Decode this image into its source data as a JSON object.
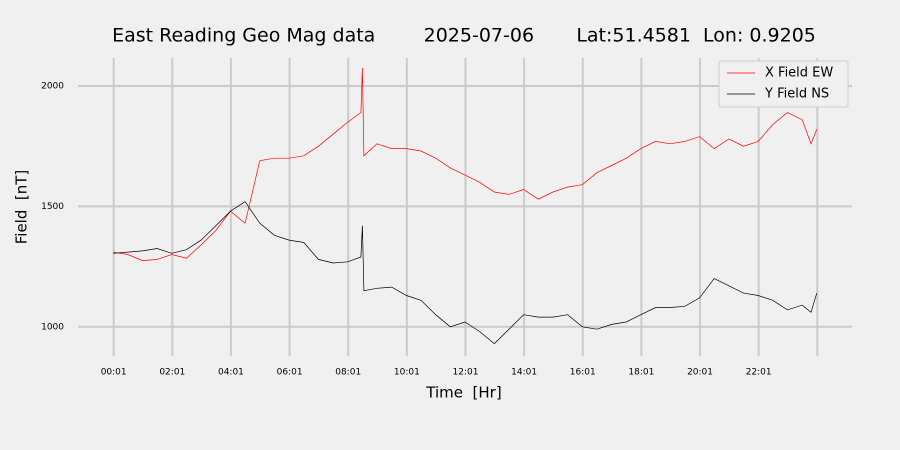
{
  "chart_data": {
    "type": "line",
    "title": "East Reading Geo Mag data        2025-07-06       Lat:51.4581  Lon: 0.9205",
    "x_label": "Time  [Hr]",
    "y_label": "Field  [nT]",
    "x": [
      0,
      0.5,
      1,
      1.5,
      2,
      2.5,
      3,
      3.5,
      4,
      4.5,
      5,
      5.5,
      6,
      6.5,
      7,
      7.5,
      8,
      8.45,
      8.5,
      8.55,
      9,
      9.5,
      10,
      10.5,
      11,
      11.5,
      12,
      12.5,
      13,
      13.5,
      14,
      14.5,
      15,
      15.5,
      16,
      16.5,
      17,
      17.5,
      18,
      18.5,
      19,
      19.5,
      20,
      20.5,
      21,
      21.5,
      22,
      22.5,
      23,
      23.5,
      23.8,
      24
    ],
    "series": [
      {
        "name": "X Field EW",
        "color": "#ff0000",
        "values": [
          1310,
          1300,
          1275,
          1280,
          1300,
          1285,
          1340,
          1400,
          1480,
          1430,
          1690,
          1700,
          1700,
          1710,
          1750,
          1800,
          1850,
          1890,
          2075,
          1710,
          1760,
          1740,
          1740,
          1730,
          1700,
          1660,
          1630,
          1600,
          1560,
          1550,
          1570,
          1530,
          1560,
          1580,
          1590,
          1640,
          1670,
          1700,
          1740,
          1770,
          1760,
          1770,
          1790,
          1740,
          1780,
          1750,
          1770,
          1840,
          1890,
          1860,
          1760,
          1820
        ]
      },
      {
        "name": "Y Field NS",
        "color": "#000000",
        "values": [
          1305,
          1310,
          1315,
          1325,
          1305,
          1320,
          1360,
          1420,
          1480,
          1520,
          1430,
          1380,
          1360,
          1350,
          1280,
          1265,
          1270,
          1290,
          1420,
          1150,
          1160,
          1165,
          1130,
          1110,
          1050,
          1000,
          1020,
          980,
          930,
          990,
          1050,
          1040,
          1040,
          1050,
          1000,
          990,
          1010,
          1020,
          1050,
          1080,
          1080,
          1085,
          1120,
          1200,
          1170,
          1140,
          1130,
          1110,
          1070,
          1090,
          1060,
          1140
        ]
      }
    ],
    "xlim": [
      -1.2,
      25.2
    ],
    "ylim": [
      862,
      2133
    ],
    "xticks": [
      {
        "value": 0.0167,
        "label": "00:01"
      },
      {
        "value": 2.0167,
        "label": "02:01"
      },
      {
        "value": 4.0167,
        "label": "04:01"
      },
      {
        "value": 6.0167,
        "label": "06:01"
      },
      {
        "value": 8.0167,
        "label": "08:01"
      },
      {
        "value": 10.0167,
        "label": "10:01"
      },
      {
        "value": 12.0167,
        "label": "12:01"
      },
      {
        "value": 14.0167,
        "label": "14:01"
      },
      {
        "value": 16.0167,
        "label": "16:01"
      },
      {
        "value": 18.0167,
        "label": "18:01"
      },
      {
        "value": 20.0167,
        "label": "20:01"
      },
      {
        "value": 22.0167,
        "label": "22:01"
      },
      {
        "value": 24.0167,
        "label": null
      }
    ],
    "yticks": [
      1000,
      1500,
      2000
    ],
    "grid": true,
    "legend": "upper-right"
  }
}
